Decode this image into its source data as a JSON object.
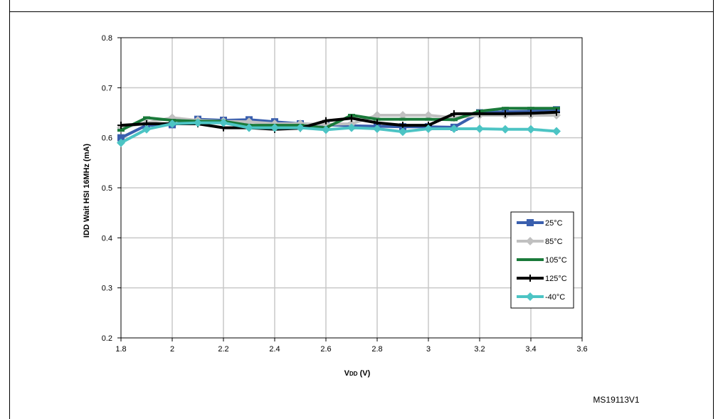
{
  "figure_code": "MS19113V1",
  "chart_data": {
    "type": "line",
    "title": "",
    "xlabel": "VDD (V)",
    "xlabel_main": "V",
    "xlabel_sub": "DD",
    "xlabel_unit": " (V)",
    "ylabel": "IDD Wait HSI 16MHz (mA)",
    "xlim": [
      1.8,
      3.6
    ],
    "ylim": [
      0.2,
      0.8
    ],
    "x_ticks": [
      1.8,
      2,
      2.2,
      2.4,
      2.6,
      2.8,
      3,
      3.2,
      3.4,
      3.6
    ],
    "x_tick_labels": [
      "1.8",
      "2",
      "2.2",
      "2.4",
      "2.6",
      "2.8",
      "3",
      "3.2",
      "3.4",
      "3.6"
    ],
    "y_ticks": [
      0.2,
      0.3,
      0.4,
      0.5,
      0.6,
      0.7,
      0.8
    ],
    "y_tick_labels": [
      "0.2",
      "0.3",
      "0.4",
      "0.5",
      "0.6",
      "0.7",
      "0.8"
    ],
    "grid": true,
    "legend_position": "right",
    "x": [
      1.8,
      1.9,
      2.0,
      2.1,
      2.2,
      2.3,
      2.4,
      2.5,
      2.6,
      2.7,
      2.8,
      2.9,
      3.0,
      3.1,
      3.2,
      3.3,
      3.4,
      3.5
    ],
    "series": [
      {
        "name": "25°C",
        "color": "#3a5fae",
        "marker": "square",
        "values": [
          0.6,
          0.625,
          0.626,
          0.637,
          0.635,
          0.636,
          0.632,
          0.628,
          0.626,
          0.624,
          0.623,
          0.622,
          0.622,
          0.621,
          0.65,
          0.652,
          0.653,
          0.656
        ]
      },
      {
        "name": "85°C",
        "color": "#c0c0c0",
        "marker": "diamond",
        "values": [
          0.62,
          0.63,
          0.64,
          0.635,
          0.633,
          0.632,
          0.628,
          0.628,
          0.627,
          0.628,
          0.645,
          0.645,
          0.645,
          0.64,
          0.645,
          0.645,
          0.645,
          0.645
        ]
      },
      {
        "name": "105°C",
        "color": "#1a7a3a",
        "marker": "dash",
        "values": [
          0.615,
          0.64,
          0.635,
          0.633,
          0.633,
          0.625,
          0.625,
          0.625,
          0.62,
          0.645,
          0.637,
          0.637,
          0.637,
          0.636,
          0.653,
          0.659,
          0.659,
          0.659
        ]
      },
      {
        "name": "125°C",
        "color": "#000000",
        "marker": "plus",
        "values": [
          0.625,
          0.628,
          0.628,
          0.628,
          0.62,
          0.62,
          0.617,
          0.619,
          0.634,
          0.639,
          0.63,
          0.625,
          0.625,
          0.648,
          0.648,
          0.648,
          0.649,
          0.651
        ]
      },
      {
        "name": "-40°C",
        "color": "#4cc4c4",
        "marker": "diamond",
        "values": [
          0.59,
          0.617,
          0.628,
          0.63,
          0.63,
          0.62,
          0.62,
          0.62,
          0.616,
          0.62,
          0.618,
          0.612,
          0.618,
          0.618,
          0.618,
          0.617,
          0.617,
          0.613
        ]
      }
    ]
  }
}
